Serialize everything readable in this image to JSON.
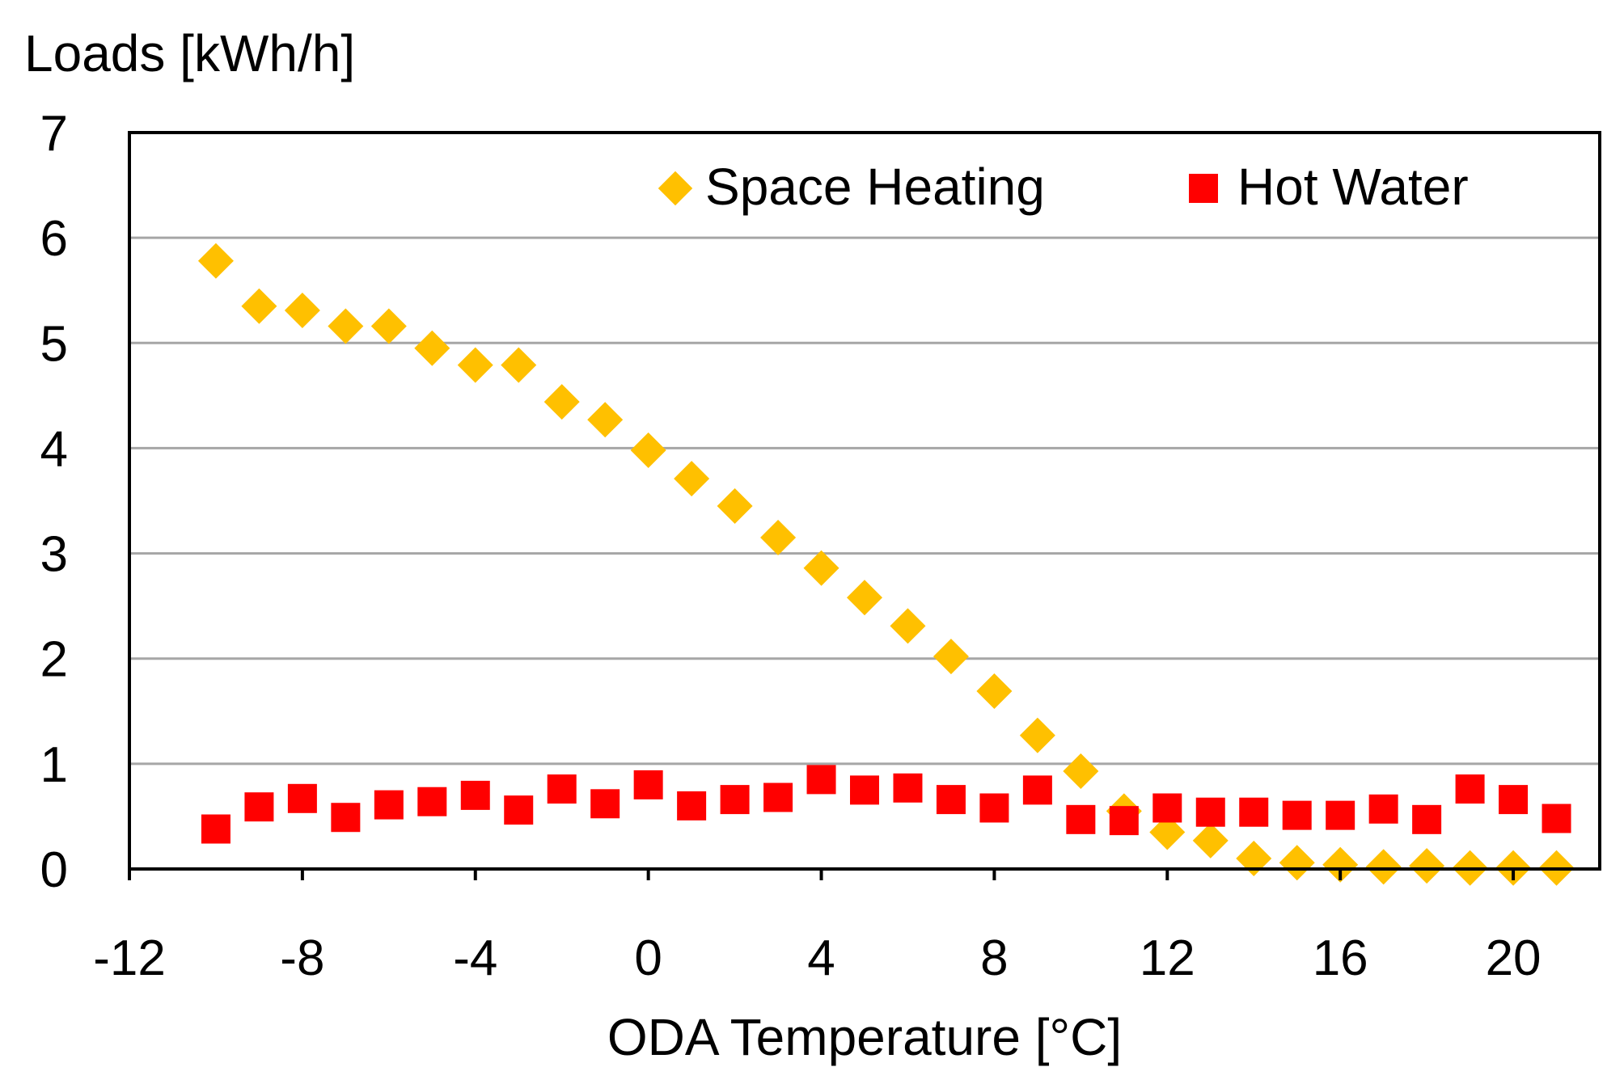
{
  "chart_data": {
    "type": "scatter",
    "title": "",
    "ylabel": "Loads [kWh/h]",
    "xlabel": "ODA Temperature [°C]",
    "xlim": [
      -12,
      22
    ],
    "ylim": [
      0,
      7
    ],
    "xticks": [
      "-12",
      "-8",
      "-4",
      "0",
      "4",
      "8",
      "12",
      "16",
      "20"
    ],
    "xtick_values": [
      -12,
      -8,
      -4,
      0,
      4,
      8,
      12,
      16,
      20
    ],
    "yticks": [
      "0",
      "1",
      "2",
      "3",
      "4",
      "5",
      "6",
      "7"
    ],
    "ytick_values": [
      0,
      1,
      2,
      3,
      4,
      5,
      6,
      7
    ],
    "grid": "horizontal",
    "legend_position": "top-right",
    "series": [
      {
        "name": "Space Heating",
        "marker": "diamond",
        "color": "#FFC000",
        "x": [
          -10,
          -9,
          -8,
          -7,
          -6,
          -5,
          -4,
          -3,
          -2,
          -1,
          0,
          1,
          2,
          3,
          4,
          5,
          6,
          7,
          8,
          9,
          10,
          11,
          12,
          13,
          14,
          15,
          16,
          17,
          18,
          19,
          20,
          21
        ],
        "y": [
          5.78,
          5.35,
          5.31,
          5.16,
          5.16,
          4.95,
          4.79,
          4.79,
          4.44,
          4.27,
          3.98,
          3.71,
          3.45,
          3.15,
          2.86,
          2.58,
          2.31,
          2.02,
          1.69,
          1.27,
          0.93,
          0.55,
          0.35,
          0.27,
          0.1,
          0.06,
          0.04,
          0.02,
          0.03,
          0.01,
          0.01,
          0.01
        ]
      },
      {
        "name": "Hot Water",
        "marker": "square",
        "color": "#FF0000",
        "x": [
          -10,
          -9,
          -8,
          -7,
          -6,
          -5,
          -4,
          -3,
          -2,
          -1,
          0,
          1,
          2,
          3,
          4,
          5,
          6,
          7,
          8,
          9,
          10,
          11,
          12,
          13,
          14,
          15,
          16,
          17,
          18,
          19,
          20,
          21
        ],
        "y": [
          0.38,
          0.59,
          0.67,
          0.49,
          0.61,
          0.64,
          0.7,
          0.56,
          0.76,
          0.62,
          0.8,
          0.6,
          0.66,
          0.68,
          0.85,
          0.75,
          0.77,
          0.66,
          0.58,
          0.75,
          0.47,
          0.46,
          0.58,
          0.54,
          0.54,
          0.51,
          0.51,
          0.57,
          0.47,
          0.76,
          0.66,
          0.48
        ]
      }
    ]
  }
}
